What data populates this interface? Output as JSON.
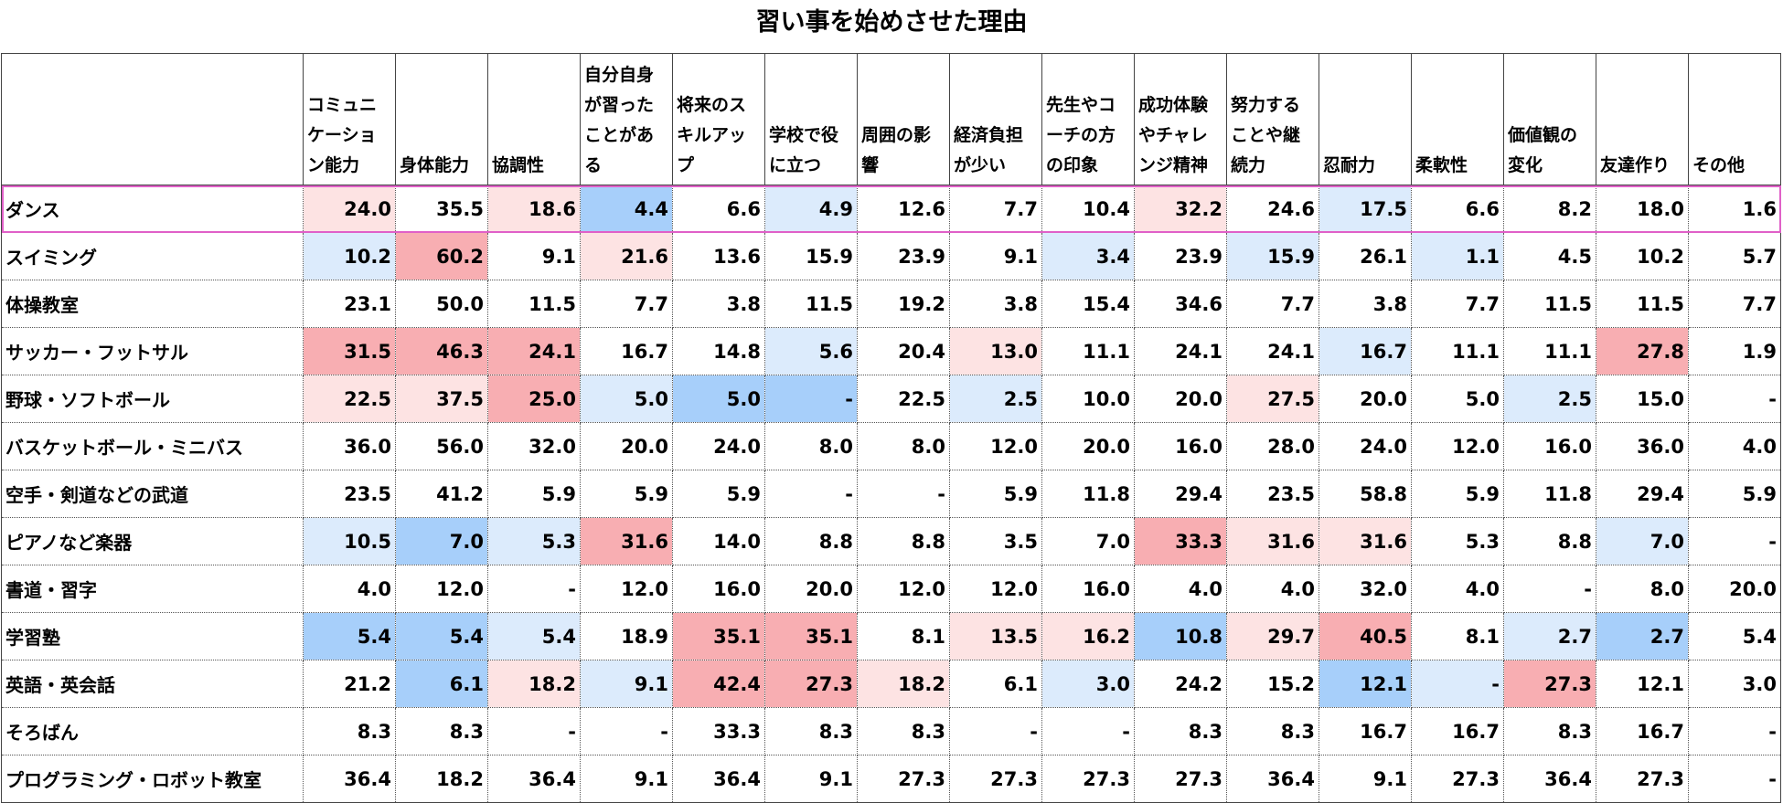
{
  "title": "習い事を始めさせた理由",
  "chart_data": {
    "type": "table",
    "title": "習い事を始めさせた理由",
    "columns": [
      "コミュニケーション能力",
      "身体能力",
      "協調性",
      "自分自身が習ったことがある",
      "将来のスキルアップ",
      "学校で役に立つ",
      "周囲の影響",
      "経済負担が少い",
      "先生やコーチの方の印象",
      "成功体験やチャレンジ精神",
      "努力することや継続力",
      "忍耐力",
      "柔軟性",
      "価値観の変化",
      "友達作り",
      "その他"
    ],
    "rows": [
      {
        "label": "ダンス",
        "values": [
          "24.0",
          "35.5",
          "18.6",
          "4.4",
          "6.6",
          "4.9",
          "12.6",
          "7.7",
          "10.4",
          "32.2",
          "24.6",
          "17.5",
          "6.6",
          "8.2",
          "18.0",
          "1.6"
        ],
        "shade": [
          "lr",
          "",
          "lr",
          "b",
          "",
          "lb",
          "",
          "",
          "",
          "lr",
          "",
          "lb",
          "",
          "",
          "",
          ""
        ]
      },
      {
        "label": "スイミング",
        "values": [
          "10.2",
          "60.2",
          "9.1",
          "21.6",
          "13.6",
          "15.9",
          "23.9",
          "9.1",
          "3.4",
          "23.9",
          "15.9",
          "26.1",
          "1.1",
          "4.5",
          "10.2",
          "5.7"
        ],
        "shade": [
          "lb",
          "r",
          "",
          "lr",
          "",
          "",
          "",
          "",
          "lb",
          "",
          "lb",
          "",
          "lb",
          "",
          "",
          ""
        ]
      },
      {
        "label": "体操教室",
        "values": [
          "23.1",
          "50.0",
          "11.5",
          "7.7",
          "3.8",
          "11.5",
          "19.2",
          "3.8",
          "15.4",
          "34.6",
          "7.7",
          "3.8",
          "7.7",
          "11.5",
          "11.5",
          "7.7"
        ],
        "shade": [
          "",
          "",
          "",
          "",
          "",
          "",
          "",
          "",
          "",
          "",
          "",
          "",
          "",
          "",
          "",
          ""
        ]
      },
      {
        "label": "サッカー・フットサル",
        "values": [
          "31.5",
          "46.3",
          "24.1",
          "16.7",
          "14.8",
          "5.6",
          "20.4",
          "13.0",
          "11.1",
          "24.1",
          "24.1",
          "16.7",
          "11.1",
          "11.1",
          "27.8",
          "1.9"
        ],
        "shade": [
          "r",
          "r",
          "r",
          "",
          "",
          "lb",
          "",
          "lr",
          "",
          "",
          "",
          "lb",
          "",
          "",
          "r",
          ""
        ]
      },
      {
        "label": "野球・ソフトボール",
        "values": [
          "22.5",
          "37.5",
          "25.0",
          "5.0",
          "5.0",
          "-",
          "22.5",
          "2.5",
          "10.0",
          "20.0",
          "27.5",
          "20.0",
          "5.0",
          "2.5",
          "15.0",
          "-"
        ],
        "shade": [
          "lr",
          "lr",
          "r",
          "lb",
          "b",
          "b",
          "",
          "lb",
          "",
          "",
          "lr",
          "",
          "",
          "lb",
          "",
          ""
        ]
      },
      {
        "label": "バスケットボール・ミニバス",
        "values": [
          "36.0",
          "56.0",
          "32.0",
          "20.0",
          "24.0",
          "8.0",
          "8.0",
          "12.0",
          "20.0",
          "16.0",
          "28.0",
          "24.0",
          "12.0",
          "16.0",
          "36.0",
          "4.0"
        ],
        "shade": [
          "",
          "",
          "",
          "",
          "",
          "",
          "",
          "",
          "",
          "",
          "",
          "",
          "",
          "",
          "",
          ""
        ]
      },
      {
        "label": "空手・剣道などの武道",
        "values": [
          "23.5",
          "41.2",
          "5.9",
          "5.9",
          "5.9",
          "-",
          "-",
          "5.9",
          "11.8",
          "29.4",
          "23.5",
          "58.8",
          "5.9",
          "11.8",
          "29.4",
          "5.9"
        ],
        "shade": [
          "",
          "",
          "",
          "",
          "",
          "",
          "",
          "",
          "",
          "",
          "",
          "",
          "",
          "",
          "",
          ""
        ]
      },
      {
        "label": "ピアノなど楽器",
        "values": [
          "10.5",
          "7.0",
          "5.3",
          "31.6",
          "14.0",
          "8.8",
          "8.8",
          "3.5",
          "7.0",
          "33.3",
          "31.6",
          "31.6",
          "5.3",
          "8.8",
          "7.0",
          "-"
        ],
        "shade": [
          "lb",
          "b",
          "lb",
          "r",
          "",
          "",
          "",
          "",
          "",
          "r",
          "lr",
          "lr",
          "",
          "",
          "lb",
          ""
        ]
      },
      {
        "label": "書道・習字",
        "values": [
          "4.0",
          "12.0",
          "-",
          "12.0",
          "16.0",
          "20.0",
          "12.0",
          "12.0",
          "16.0",
          "4.0",
          "4.0",
          "32.0",
          "4.0",
          "-",
          "8.0",
          "20.0"
        ],
        "shade": [
          "",
          "",
          "",
          "",
          "",
          "",
          "",
          "",
          "",
          "",
          "",
          "",
          "",
          "",
          "",
          ""
        ]
      },
      {
        "label": "学習塾",
        "values": [
          "5.4",
          "5.4",
          "5.4",
          "18.9",
          "35.1",
          "35.1",
          "8.1",
          "13.5",
          "16.2",
          "10.8",
          "29.7",
          "40.5",
          "8.1",
          "2.7",
          "2.7",
          "5.4"
        ],
        "shade": [
          "b",
          "b",
          "lb",
          "",
          "r",
          "r",
          "",
          "lr",
          "lr",
          "b",
          "lr",
          "r",
          "",
          "lb",
          "b",
          ""
        ]
      },
      {
        "label": "英語・英会話",
        "values": [
          "21.2",
          "6.1",
          "18.2",
          "9.1",
          "42.4",
          "27.3",
          "18.2",
          "6.1",
          "3.0",
          "24.2",
          "15.2",
          "12.1",
          "-",
          "27.3",
          "12.1",
          "3.0"
        ],
        "shade": [
          "",
          "b",
          "lr",
          "lb",
          "r",
          "r",
          "lr",
          "",
          "lb",
          "",
          "",
          "b",
          "lb",
          "r",
          "",
          ""
        ]
      },
      {
        "label": "そろばん",
        "values": [
          "8.3",
          "8.3",
          "-",
          "-",
          "33.3",
          "8.3",
          "8.3",
          "-",
          "-",
          "8.3",
          "8.3",
          "16.7",
          "16.7",
          "8.3",
          "16.7",
          "-"
        ],
        "shade": [
          "",
          "",
          "",
          "",
          "",
          "",
          "",
          "",
          "",
          "",
          "",
          "",
          "",
          "",
          "",
          ""
        ]
      },
      {
        "label": "プログラミング・ロボット教室",
        "values": [
          "36.4",
          "18.2",
          "36.4",
          "9.1",
          "36.4",
          "9.1",
          "27.3",
          "27.3",
          "27.3",
          "27.3",
          "36.4",
          "9.1",
          "27.3",
          "36.4",
          "27.3",
          "-"
        ],
        "shade": [
          "",
          "",
          "",
          "",
          "",
          "",
          "",
          "",
          "",
          "",
          "",
          "",
          "",
          "",
          "",
          ""
        ]
      }
    ],
    "highlight_row": "ダンス",
    "colors": {
      "light_red": "#fde3e3",
      "red": "#f8aeb2",
      "light_blue": "#dcebfc",
      "blue": "#a7cffa",
      "highlight_border": "#e060c8"
    }
  }
}
